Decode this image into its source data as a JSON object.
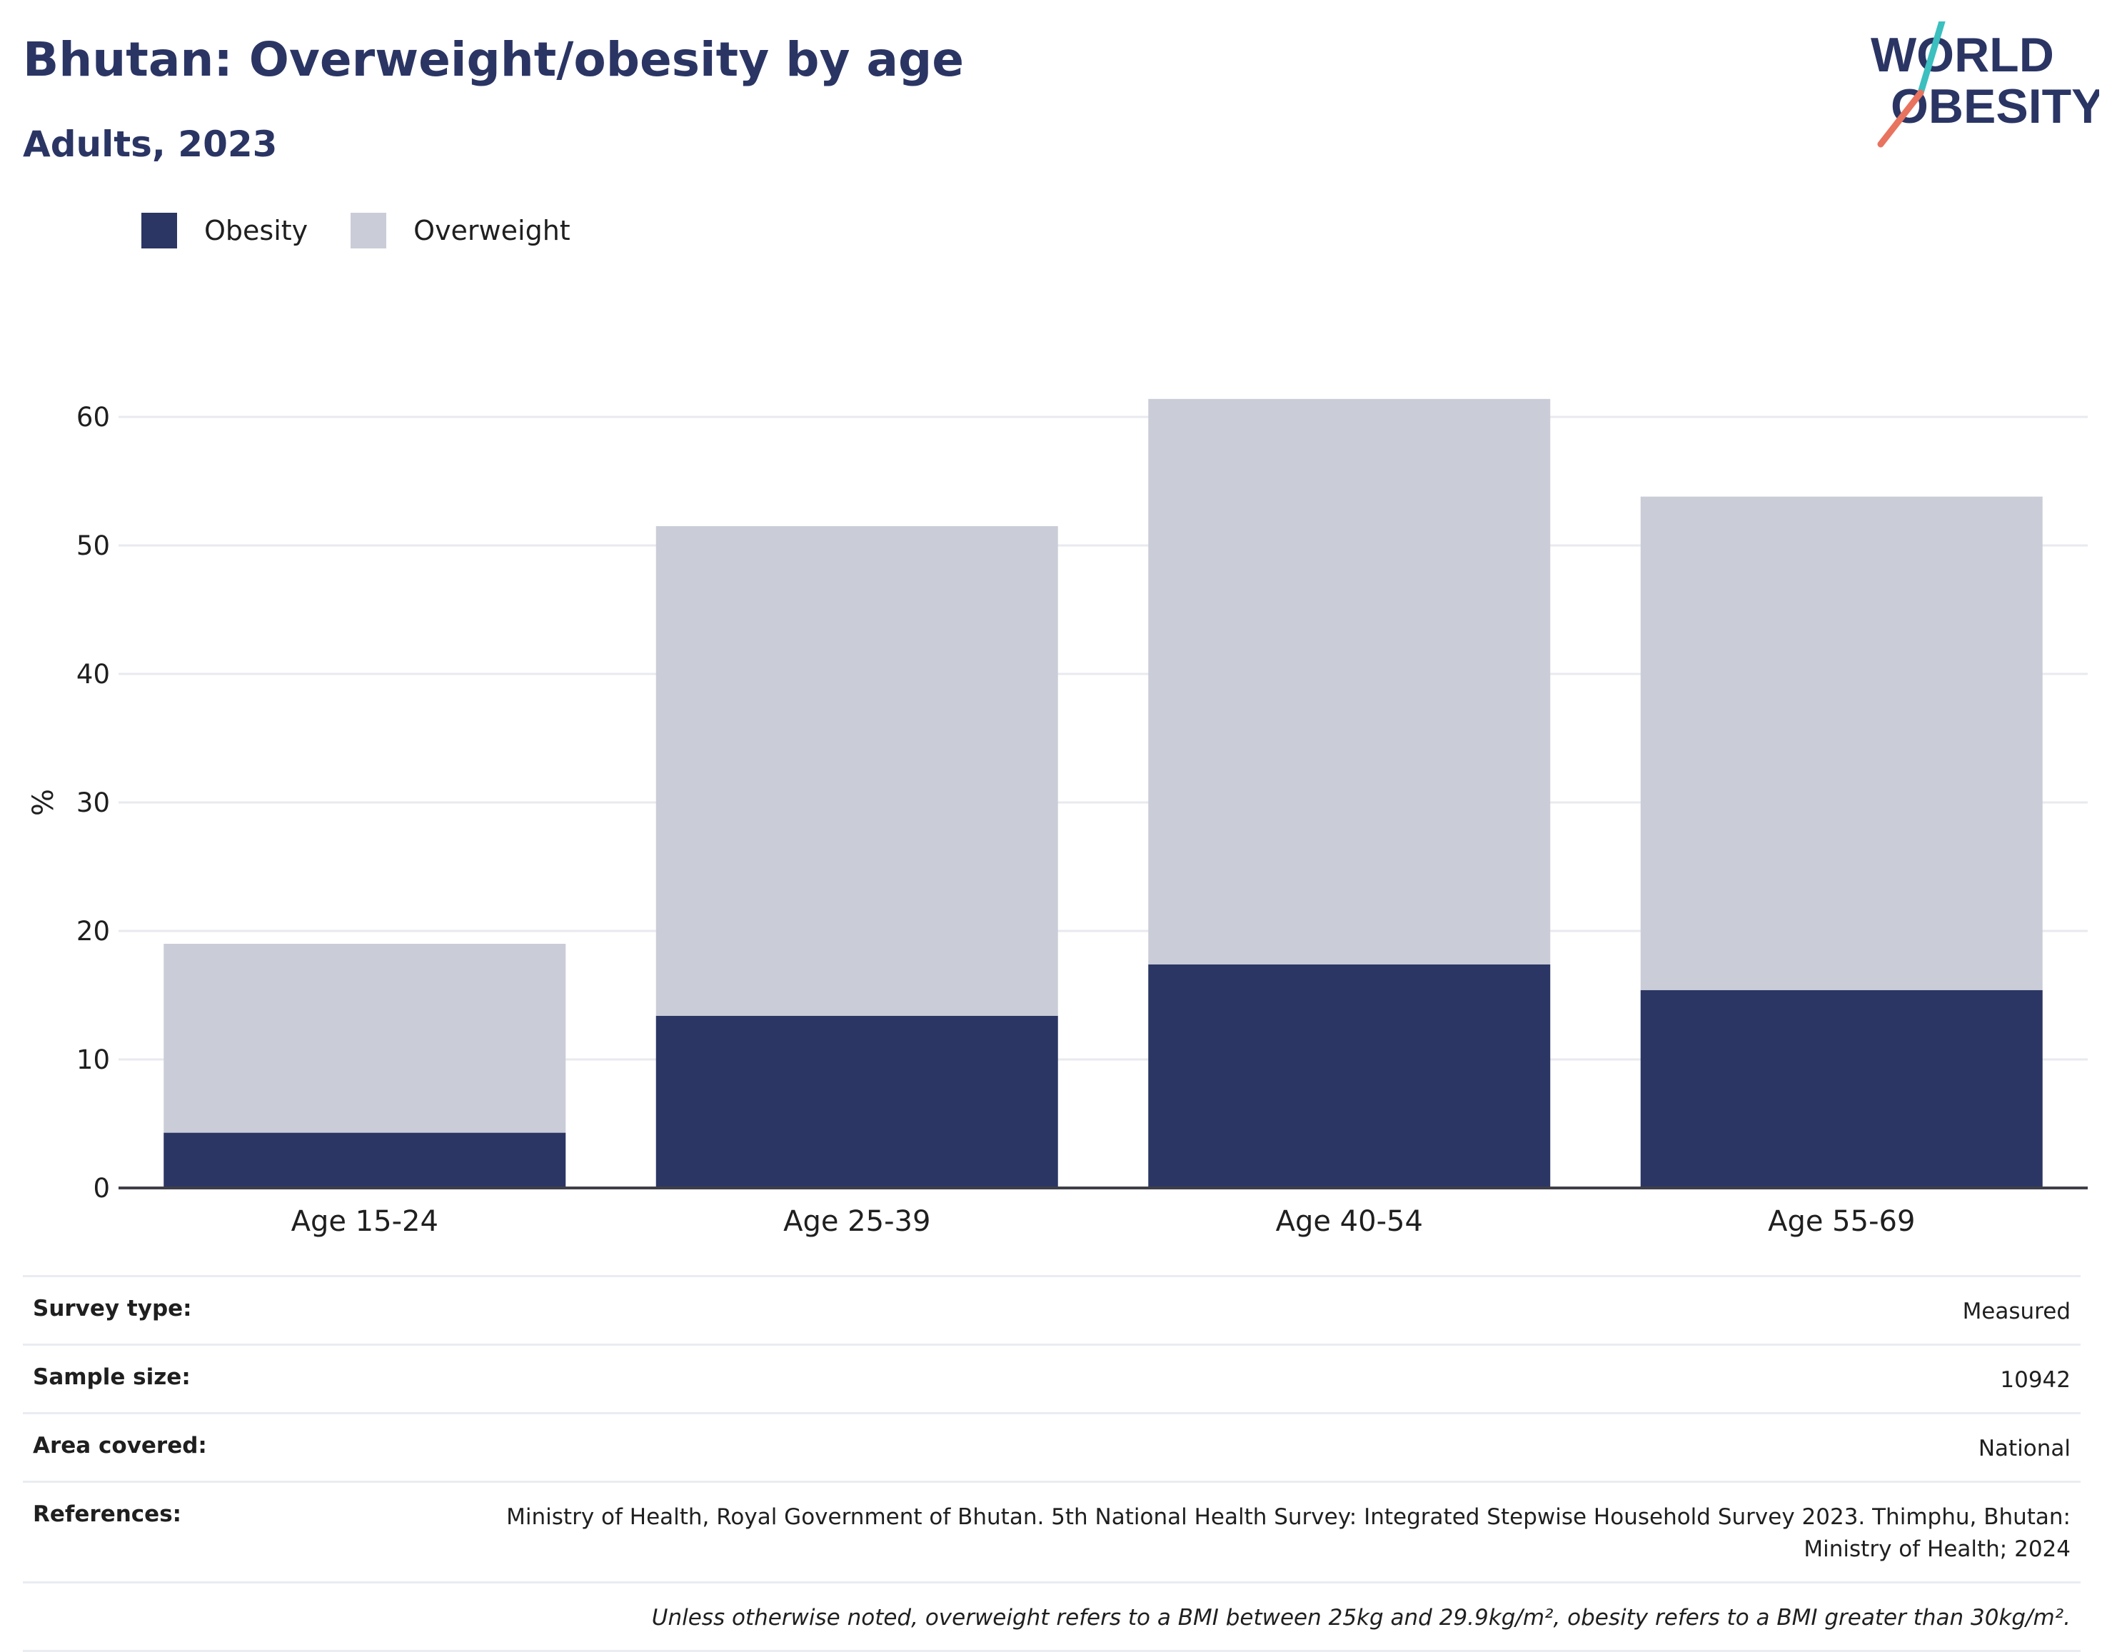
{
  "header": {
    "title": "Bhutan: Overweight/obesity by age",
    "subtitle": "Adults, 2023"
  },
  "logo": {
    "line1": "WORLD",
    "line2": "OBESITY"
  },
  "colors": {
    "obesity": "#2b3664",
    "overweight": "#cacdd8",
    "text": "#2a3564",
    "logo_slash_top": "#3bbfbf",
    "logo_slash_bottom": "#e8735f"
  },
  "legend": [
    {
      "label": "Obesity",
      "color": "#2b3664"
    },
    {
      "label": "Overweight",
      "color": "#cacdd8"
    }
  ],
  "chart_data": {
    "type": "bar",
    "stacked": true,
    "title": "Bhutan: Overweight/obesity by age",
    "subtitle": "Adults, 2023",
    "ylabel": "%",
    "ylim": [
      0,
      65
    ],
    "yticks": [
      0,
      10,
      20,
      30,
      40,
      50,
      60
    ],
    "grid": true,
    "legend_position": "top-left",
    "categories": [
      "Age 15-24",
      "Age 25-39",
      "Age 40-54",
      "Age 55-69"
    ],
    "series": [
      {
        "name": "Obesity",
        "values": [
          4.3,
          13.4,
          17.4,
          15.4
        ]
      },
      {
        "name": "Overweight",
        "values": [
          14.7,
          38.1,
          44.0,
          38.4
        ]
      }
    ]
  },
  "info": [
    {
      "key": "Survey type:",
      "value": "Measured"
    },
    {
      "key": "Sample size:",
      "value": "10942"
    },
    {
      "key": "Area covered:",
      "value": "National"
    },
    {
      "key": "References:",
      "value": "Ministry of Health, Royal Government of Bhutan. 5th National Health Survey: Integrated Stepwise Household Survey 2023. Thimphu, Bhutan: Ministry of Health; 2024"
    }
  ],
  "note": "Unless otherwise noted, overweight refers to a BMI between 25kg and 29.9kg/m², obesity refers to a BMI greater than 30kg/m²."
}
